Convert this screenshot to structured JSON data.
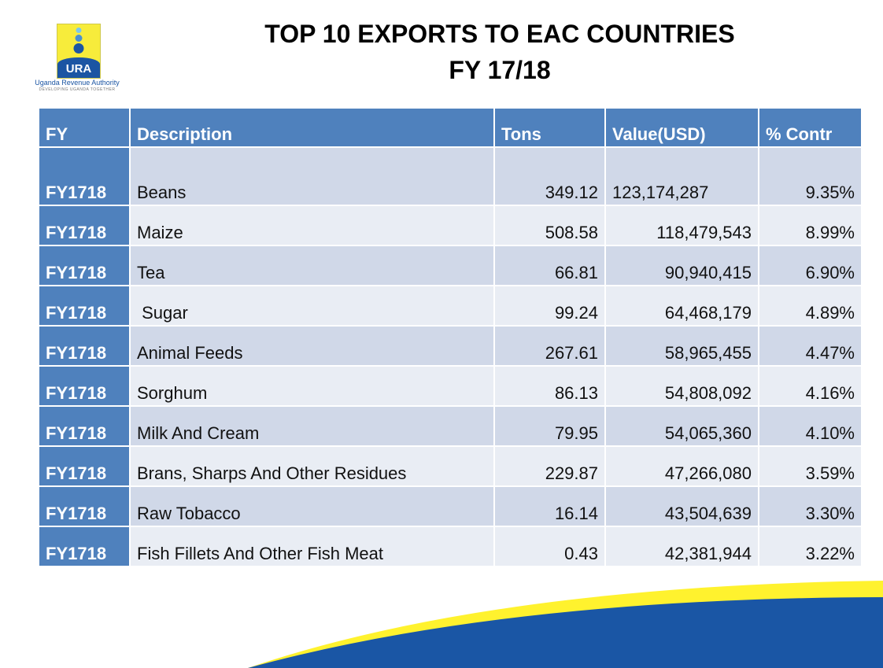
{
  "logo": {
    "acronym": "URA",
    "name": "Uganda Revenue Authority",
    "tagline": "DEVELOPING UGANDA TOGETHER"
  },
  "title": {
    "line1": "TOP 10 EXPORTS TO EAC COUNTRIES",
    "line2": "FY 17/18"
  },
  "colors": {
    "header": "#4f81bd",
    "row_dark": "#d0d8e8",
    "row_light": "#e9edf4",
    "swoosh_blue": "#1a56a5",
    "swoosh_yellow": "#fff22e"
  },
  "table": {
    "headers": [
      "FY",
      "Description",
      "Tons",
      "Value(USD)",
      "% Contr"
    ],
    "rows": [
      [
        "FY1718",
        "Beans",
        "349.12",
        "123,174,287",
        "9.35%"
      ],
      [
        "FY1718",
        "Maize",
        "508.58",
        "118,479,543",
        "8.99%"
      ],
      [
        "FY1718",
        "Tea",
        "66.81",
        "90,940,415",
        "6.90%"
      ],
      [
        "FY1718",
        " Sugar",
        "99.24",
        "64,468,179",
        "4.89%"
      ],
      [
        "FY1718",
        "Animal Feeds",
        "267.61",
        "58,965,455",
        "4.47%"
      ],
      [
        "FY1718",
        "Sorghum",
        "86.13",
        "54,808,092",
        "4.16%"
      ],
      [
        "FY1718",
        "Milk And Cream",
        "79.95",
        "54,065,360",
        "4.10%"
      ],
      [
        "FY1718",
        "Brans, Sharps And Other Residues",
        "229.87",
        "47,266,080",
        "3.59%"
      ],
      [
        "FY1718",
        "Raw Tobacco",
        "16.14",
        "43,504,639",
        "3.30%"
      ],
      [
        "FY1718",
        "Fish Fillets And Other Fish Meat",
        "0.43",
        "42,381,944",
        "3.22%"
      ]
    ]
  }
}
